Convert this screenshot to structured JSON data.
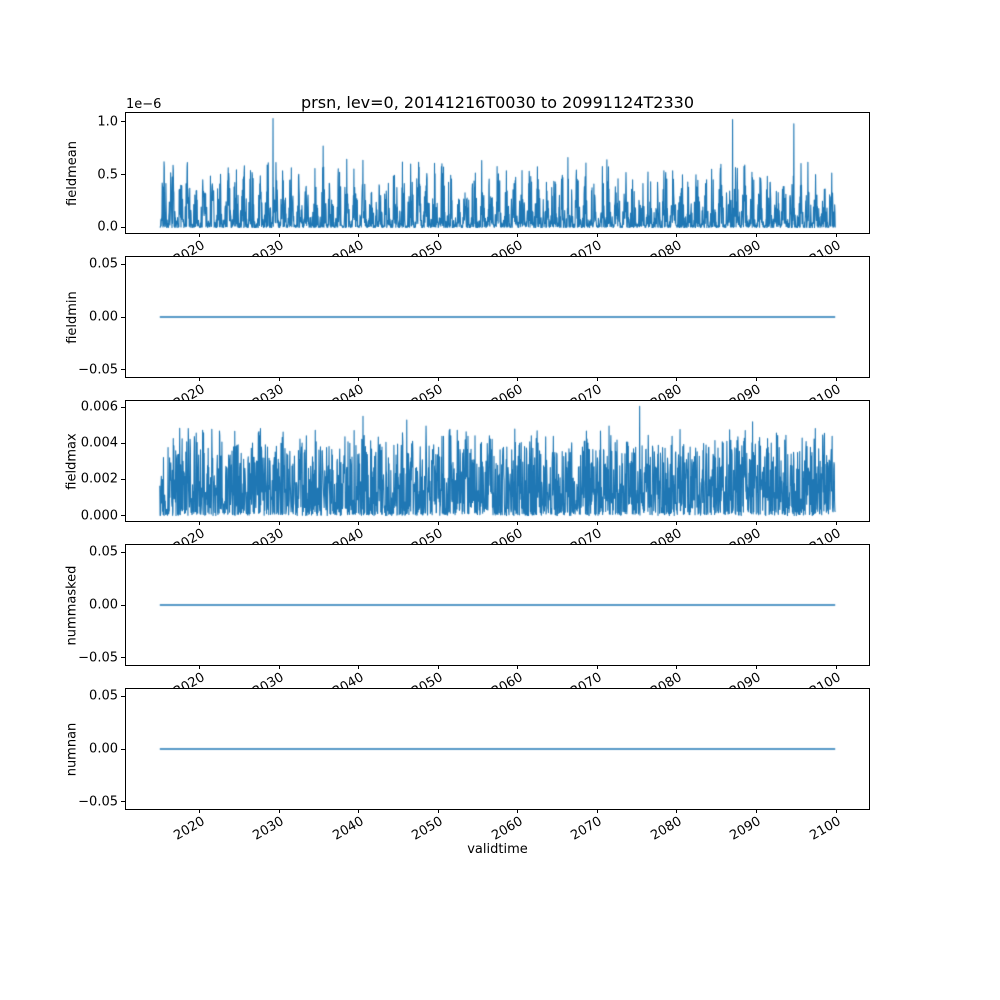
{
  "figure": {
    "title": "prsn, lev=0, 20141216T0030 to 20991124T2330",
    "background": "#ffffff",
    "line_color": "#1f77b4"
  },
  "x_axis": {
    "label": "validtime",
    "xlim": [
      2010.71,
      2104.15
    ],
    "data_start": 2014.96,
    "data_end": 2099.9,
    "ticks": [
      {
        "v": 2020,
        "label": "2020"
      },
      {
        "v": 2030,
        "label": "2030"
      },
      {
        "v": 2040,
        "label": "2040"
      },
      {
        "v": 2050,
        "label": "2050"
      },
      {
        "v": 2060,
        "label": "2060"
      },
      {
        "v": 2070,
        "label": "2070"
      },
      {
        "v": 2080,
        "label": "2080"
      },
      {
        "v": 2090,
        "label": "2090"
      },
      {
        "v": 2100,
        "label": "2100"
      }
    ]
  },
  "chart_data": [
    {
      "type": "line",
      "ylabel": "fieldmean",
      "offset_text": "1e−6",
      "ylim": [
        -5.2e-08,
        1.082e-06
      ],
      "yticks": [
        {
          "v": 0.0,
          "label": "0.0"
        },
        {
          "v": 5e-07,
          "label": "0.5"
        },
        {
          "v": 1e-06,
          "label": "1.0"
        }
      ],
      "line_width": 1.1,
      "series": {
        "kind": "seasonal_spikes",
        "seed": 7,
        "points_per_year": 30,
        "scale": 1e-06,
        "season_exponent": 1.3,
        "dropout": 0.18,
        "min_frac": 0.04,
        "max_frac": 0.66,
        "shape": 1.9,
        "value_min": 0,
        "typical_peak_range": [
          1.5e-07,
          6.5e-07
        ],
        "notable_peaks": [
          [
            2029.2,
            1.03e-06
          ],
          [
            2035.5,
            7.7e-07
          ],
          [
            2066.3,
            6.6e-07
          ],
          [
            2071.2,
            6.4e-07
          ],
          [
            2087.0,
            1.02e-06
          ],
          [
            2094.7,
            9.8e-07
          ]
        ]
      }
    },
    {
      "type": "line",
      "ylabel": "fieldmin",
      "ylim": [
        -0.057,
        0.057
      ],
      "yticks": [
        {
          "v": 0.05,
          "label": "0.05"
        },
        {
          "v": 0.0,
          "label": "0.00"
        },
        {
          "v": -0.05,
          "label": "−0.05"
        }
      ],
      "line_width": 1.6,
      "series": {
        "kind": "constant",
        "value": 0.0
      }
    },
    {
      "type": "line",
      "ylabel": "fieldmax",
      "ylim": [
        -0.0003,
        0.00635
      ],
      "yticks": [
        {
          "v": 0.006,
          "label": "0.006"
        },
        {
          "v": 0.004,
          "label": "0.004"
        },
        {
          "v": 0.002,
          "label": "0.002"
        },
        {
          "v": 0.0,
          "label": "0.000"
        }
      ],
      "line_width": 1.1,
      "series": {
        "kind": "dense_noise",
        "seed": 13,
        "points_per_year": 26,
        "base": 5e-05,
        "amp": 0.005,
        "shape": 1.5,
        "season_mod": 0.25,
        "value_min": 0,
        "typical_peak_range": [
          0.002,
          0.0055
        ],
        "notable_peaks": [
          [
            2040.5,
            0.0055
          ],
          [
            2046.0,
            0.0053
          ],
          [
            2075.3,
            0.00605
          ],
          [
            2089.5,
            0.0052
          ]
        ]
      }
    },
    {
      "type": "line",
      "ylabel": "nummasked",
      "ylim": [
        -0.057,
        0.057
      ],
      "yticks": [
        {
          "v": 0.05,
          "label": "0.05"
        },
        {
          "v": 0.0,
          "label": "0.00"
        },
        {
          "v": -0.05,
          "label": "−0.05"
        }
      ],
      "line_width": 1.6,
      "series": {
        "kind": "constant",
        "value": 0.0
      }
    },
    {
      "type": "line",
      "ylabel": "numnan",
      "ylim": [
        -0.057,
        0.057
      ],
      "yticks": [
        {
          "v": 0.05,
          "label": "0.05"
        },
        {
          "v": 0.0,
          "label": "0.00"
        },
        {
          "v": -0.05,
          "label": "−0.05"
        }
      ],
      "line_width": 1.6,
      "series": {
        "kind": "constant",
        "value": 0.0
      }
    }
  ]
}
